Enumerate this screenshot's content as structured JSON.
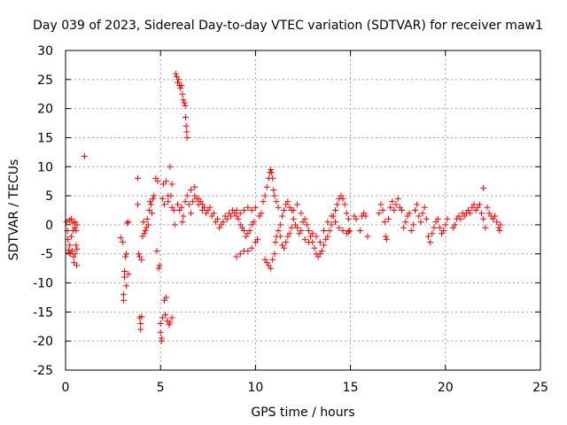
{
  "chart_data": {
    "type": "scatter",
    "title": "Day 039 of 2023, Sidereal Day-to-day VTEC variation (SDTVAR) for receiver maw1",
    "xlabel": "GPS time / hours",
    "ylabel": "SDTVAR / TECUs",
    "xlim": [
      0,
      25
    ],
    "ylim": [
      -25,
      30
    ],
    "xticks": [
      0,
      5,
      10,
      15,
      20,
      25
    ],
    "yticks": [
      -25,
      -20,
      -15,
      -10,
      -5,
      0,
      5,
      10,
      15,
      20,
      25,
      30
    ],
    "grid": true,
    "marker": "+",
    "color": "#ff0000",
    "series": [
      {
        "name": "maw1",
        "points": [
          [
            0.05,
            0.5
          ],
          [
            0.1,
            -1.0
          ],
          [
            0.12,
            -2.5
          ],
          [
            0.15,
            -4.3
          ],
          [
            0.18,
            -4.8
          ],
          [
            0.2,
            0.8
          ],
          [
            0.22,
            -3.5
          ],
          [
            0.25,
            -5.0
          ],
          [
            0.3,
            1.0
          ],
          [
            0.3,
            -2.0
          ],
          [
            0.35,
            -4.5
          ],
          [
            0.38,
            0.3
          ],
          [
            0.4,
            -1.0
          ],
          [
            0.42,
            -5.5
          ],
          [
            0.45,
            -6.5
          ],
          [
            0.48,
            -0.5
          ],
          [
            0.5,
            -5.0
          ],
          [
            0.5,
            0.5
          ],
          [
            0.55,
            -3.5
          ],
          [
            0.55,
            -1.0
          ],
          [
            0.58,
            -7.0
          ],
          [
            0.6,
            0.0
          ],
          [
            0.6,
            -4.2
          ],
          [
            1.0,
            11.8
          ],
          [
            2.9,
            -2.2
          ],
          [
            3.0,
            -3.0
          ],
          [
            3.05,
            -12.0
          ],
          [
            3.05,
            -13.0
          ],
          [
            3.1,
            -9.0
          ],
          [
            3.1,
            -8.0
          ],
          [
            3.15,
            -5.5
          ],
          [
            3.2,
            -10.5
          ],
          [
            3.2,
            -5.0
          ],
          [
            3.25,
            0.3
          ],
          [
            3.3,
            0.5
          ],
          [
            3.3,
            -8.5
          ],
          [
            3.8,
            8.0
          ],
          [
            3.8,
            3.5
          ],
          [
            3.85,
            -5.0
          ],
          [
            3.9,
            -5.5
          ],
          [
            3.9,
            -16.0
          ],
          [
            3.95,
            -17.0
          ],
          [
            3.95,
            -18.0
          ],
          [
            4.0,
            -15.8
          ],
          [
            4.0,
            -6.0
          ],
          [
            4.05,
            -2.0
          ],
          [
            4.1,
            0.5
          ],
          [
            4.15,
            -1.5
          ],
          [
            4.2,
            -1.0
          ],
          [
            4.25,
            -0.5
          ],
          [
            4.3,
            1.0
          ],
          [
            4.35,
            0.0
          ],
          [
            4.4,
            2.5
          ],
          [
            4.45,
            4.0
          ],
          [
            4.5,
            3.5
          ],
          [
            4.55,
            2.0
          ],
          [
            4.6,
            4.5
          ],
          [
            4.65,
            5.0
          ],
          [
            4.75,
            8.0
          ],
          [
            4.8,
            -4.5
          ],
          [
            4.85,
            7.5
          ],
          [
            4.9,
            -7.5
          ],
          [
            4.95,
            -7.0
          ],
          [
            5.0,
            -17.0
          ],
          [
            5.0,
            -18.5
          ],
          [
            5.05,
            -19.5
          ],
          [
            5.05,
            -20.0
          ],
          [
            5.1,
            -16.0
          ],
          [
            5.15,
            7.0
          ],
          [
            5.2,
            -13.0
          ],
          [
            5.25,
            -15.5
          ],
          [
            5.3,
            -12.5
          ],
          [
            5.35,
            -16.5
          ],
          [
            5.4,
            4.0
          ],
          [
            5.45,
            -17.2
          ],
          [
            5.5,
            -16.8
          ],
          [
            5.55,
            5.0
          ],
          [
            5.6,
            3.0
          ],
          [
            5.6,
            -16.0
          ],
          [
            5.1,
            4.5
          ],
          [
            5.2,
            3.5
          ],
          [
            5.3,
            7.5
          ],
          [
            5.4,
            5.0
          ],
          [
            5.5,
            10.0
          ],
          [
            5.6,
            7.0
          ],
          [
            5.7,
            2.5
          ],
          [
            5.75,
            0.0
          ],
          [
            5.8,
            26.0
          ],
          [
            5.85,
            25.5
          ],
          [
            5.9,
            24.5
          ],
          [
            5.95,
            25.0
          ],
          [
            6.0,
            24.0
          ],
          [
            6.05,
            23.5
          ],
          [
            6.1,
            24.0
          ],
          [
            6.15,
            22.5
          ],
          [
            6.2,
            21.5
          ],
          [
            6.25,
            21.0
          ],
          [
            6.3,
            20.5
          ],
          [
            6.32,
            18.5
          ],
          [
            6.35,
            17.0
          ],
          [
            6.38,
            16.0
          ],
          [
            6.4,
            15.0
          ],
          [
            5.9,
            3.5
          ],
          [
            6.0,
            2.5
          ],
          [
            6.1,
            3.0
          ],
          [
            6.15,
            0.5
          ],
          [
            6.2,
            1.5
          ],
          [
            6.3,
            4.0
          ],
          [
            6.4,
            5.0
          ],
          [
            6.5,
            3.5
          ],
          [
            6.6,
            2.0
          ],
          [
            6.7,
            4.0
          ],
          [
            6.8,
            5.0
          ],
          [
            6.9,
            4.5
          ],
          [
            7.0,
            3.5
          ],
          [
            7.1,
            4.0
          ],
          [
            7.2,
            2.5
          ],
          [
            7.3,
            3.0
          ],
          [
            7.4,
            2.0
          ],
          [
            7.5,
            2.5
          ],
          [
            7.6,
            3.0
          ],
          [
            7.7,
            1.5
          ],
          [
            7.8,
            2.0
          ],
          [
            7.9,
            0.5
          ],
          [
            8.0,
            1.0
          ],
          [
            8.1,
            -0.5
          ],
          [
            8.2,
            0.0
          ],
          [
            8.3,
            0.5
          ],
          [
            8.4,
            1.5
          ],
          [
            8.5,
            1.0
          ],
          [
            8.6,
            2.0
          ],
          [
            8.7,
            1.5
          ],
          [
            8.8,
            2.5
          ],
          [
            8.9,
            2.0
          ],
          [
            9.0,
            1.5
          ],
          [
            9.1,
            1.0
          ],
          [
            9.2,
            0.0
          ],
          [
            9.3,
            -0.5
          ],
          [
            9.4,
            -1.0
          ],
          [
            9.5,
            -2.0
          ],
          [
            9.6,
            -1.5
          ],
          [
            9.7,
            -1.0
          ],
          [
            9.8,
            0.0
          ],
          [
            9.9,
            0.5
          ],
          [
            6.6,
            6.0
          ],
          [
            6.8,
            6.5
          ],
          [
            7.0,
            4.5
          ],
          [
            7.2,
            3.5
          ],
          [
            9.0,
            -5.5
          ],
          [
            9.2,
            -5.0
          ],
          [
            9.4,
            -4.5
          ],
          [
            9.6,
            -4.5
          ],
          [
            9.8,
            -4.0
          ],
          [
            10.0,
            -3.0
          ],
          [
            10.1,
            -2.5
          ],
          [
            9.0,
            2.5
          ],
          [
            9.2,
            2.0
          ],
          [
            9.4,
            2.5
          ],
          [
            9.6,
            3.0
          ],
          [
            9.8,
            2.5
          ],
          [
            10.0,
            3.0
          ],
          [
            10.2,
            1.5
          ],
          [
            10.3,
            2.0
          ],
          [
            10.4,
            4.0
          ],
          [
            10.5,
            5.0
          ],
          [
            10.6,
            6.5
          ],
          [
            10.7,
            8.0
          ],
          [
            10.75,
            9.0
          ],
          [
            10.8,
            9.5
          ],
          [
            10.85,
            9.0
          ],
          [
            10.9,
            8.0
          ],
          [
            10.95,
            6.0
          ],
          [
            10.5,
            -6.0
          ],
          [
            10.6,
            -6.5
          ],
          [
            10.7,
            -7.0
          ],
          [
            10.8,
            -7.5
          ],
          [
            10.9,
            -6.0
          ],
          [
            11.0,
            -5.0
          ],
          [
            11.05,
            -3.0
          ],
          [
            11.1,
            -2.0
          ],
          [
            11.2,
            -1.0
          ],
          [
            11.3,
            0.0
          ],
          [
            11.4,
            1.5
          ],
          [
            11.5,
            2.5
          ],
          [
            11.6,
            3.5
          ],
          [
            11.7,
            4.0
          ],
          [
            11.8,
            3.0
          ],
          [
            11.9,
            2.5
          ],
          [
            12.0,
            1.0
          ],
          [
            12.1,
            0.0
          ],
          [
            12.2,
            -0.5
          ],
          [
            12.3,
            -1.5
          ],
          [
            12.4,
            -1.0
          ],
          [
            12.5,
            0.5
          ],
          [
            12.6,
            1.0
          ],
          [
            12.7,
            0.0
          ],
          [
            12.8,
            -1.0
          ],
          [
            12.9,
            -2.0
          ],
          [
            13.0,
            -3.0
          ],
          [
            13.1,
            -4.0
          ],
          [
            13.2,
            -5.0
          ],
          [
            13.3,
            -5.5
          ],
          [
            13.4,
            -5.0
          ],
          [
            13.5,
            -4.5
          ],
          [
            13.6,
            -3.5
          ],
          [
            13.7,
            -2.5
          ],
          [
            13.8,
            -2.0
          ],
          [
            13.9,
            -1.0
          ],
          [
            14.0,
            0.0
          ],
          [
            14.1,
            1.5
          ],
          [
            14.2,
            2.5
          ],
          [
            14.3,
            3.5
          ],
          [
            14.4,
            4.5
          ],
          [
            14.5,
            5.0
          ],
          [
            14.6,
            4.5
          ],
          [
            14.7,
            3.5
          ],
          [
            14.8,
            2.0
          ],
          [
            14.9,
            1.0
          ],
          [
            14.95,
            -1.0
          ],
          [
            11.0,
            5.0
          ],
          [
            11.1,
            4.0
          ],
          [
            11.2,
            3.0
          ],
          [
            11.3,
            -2.0
          ],
          [
            11.4,
            -3.5
          ],
          [
            11.5,
            -4.0
          ],
          [
            11.6,
            -3.0
          ],
          [
            11.7,
            -2.0
          ],
          [
            11.8,
            -1.5
          ],
          [
            11.9,
            -0.5
          ],
          [
            12.0,
            2.5
          ],
          [
            12.2,
            3.5
          ],
          [
            12.4,
            2.0
          ],
          [
            12.6,
            -2.5
          ],
          [
            12.8,
            -3.0
          ],
          [
            13.0,
            -1.5
          ],
          [
            13.2,
            -2.0
          ],
          [
            13.4,
            -3.0
          ],
          [
            13.6,
            -1.0
          ],
          [
            13.8,
            0.5
          ],
          [
            14.0,
            1.5
          ],
          [
            14.2,
            0.5
          ],
          [
            14.4,
            -0.5
          ],
          [
            14.6,
            -1.0
          ],
          [
            14.8,
            -1.5
          ],
          [
            14.9,
            -1.2
          ],
          [
            15.2,
            1.5
          ],
          [
            15.3,
            1.0
          ],
          [
            15.5,
            -1.0
          ],
          [
            15.6,
            1.5
          ],
          [
            15.7,
            2.0
          ],
          [
            15.8,
            1.5
          ],
          [
            15.9,
            -2.0
          ],
          [
            16.5,
            2.0
          ],
          [
            16.6,
            3.5
          ],
          [
            16.7,
            2.5
          ],
          [
            16.8,
            0.5
          ],
          [
            16.85,
            -2.0
          ],
          [
            16.9,
            -2.5
          ],
          [
            17.0,
            1.0
          ],
          [
            17.1,
            3.0
          ],
          [
            17.2,
            4.0
          ],
          [
            17.3,
            2.5
          ],
          [
            17.4,
            3.5
          ],
          [
            17.5,
            4.5
          ],
          [
            17.6,
            3.0
          ],
          [
            17.7,
            2.5
          ],
          [
            17.8,
            -0.5
          ],
          [
            17.9,
            0.5
          ],
          [
            18.0,
            1.5
          ],
          [
            18.1,
            2.0
          ],
          [
            18.2,
            -1.0
          ],
          [
            18.3,
            0.0
          ],
          [
            18.4,
            2.5
          ],
          [
            18.5,
            3.5
          ],
          [
            18.6,
            1.5
          ],
          [
            18.7,
            0.5
          ],
          [
            18.8,
            2.0
          ],
          [
            18.9,
            3.0
          ],
          [
            19.0,
            1.0
          ],
          [
            19.1,
            -2.0
          ],
          [
            19.2,
            -3.0
          ],
          [
            19.3,
            -1.5
          ],
          [
            19.4,
            -0.5
          ],
          [
            19.5,
            0.5
          ],
          [
            19.6,
            1.0
          ],
          [
            19.7,
            -0.5
          ],
          [
            19.8,
            -1.5
          ],
          [
            19.9,
            -1.0
          ],
          [
            20.0,
            0.0
          ],
          [
            20.1,
            1.0
          ],
          [
            20.4,
            -0.5
          ],
          [
            20.5,
            0.0
          ],
          [
            20.6,
            1.0
          ],
          [
            20.7,
            1.5
          ],
          [
            20.8,
            1.0
          ],
          [
            20.9,
            2.0
          ],
          [
            21.0,
            1.5
          ],
          [
            21.1,
            2.0
          ],
          [
            21.2,
            2.5
          ],
          [
            21.3,
            2.0
          ],
          [
            21.4,
            3.0
          ],
          [
            21.5,
            3.5
          ],
          [
            21.6,
            2.5
          ],
          [
            21.7,
            3.0
          ],
          [
            21.8,
            3.5
          ],
          [
            21.9,
            2.0
          ],
          [
            22.0,
            6.3
          ],
          [
            22.0,
            1.0
          ],
          [
            22.1,
            -0.5
          ],
          [
            22.2,
            3.0
          ],
          [
            22.3,
            2.0
          ],
          [
            22.4,
            1.5
          ],
          [
            22.5,
            1.0
          ],
          [
            22.6,
            1.5
          ],
          [
            22.7,
            0.5
          ],
          [
            22.8,
            -0.5
          ],
          [
            22.85,
            -1.0
          ],
          [
            22.9,
            0.0
          ]
        ]
      }
    ]
  }
}
